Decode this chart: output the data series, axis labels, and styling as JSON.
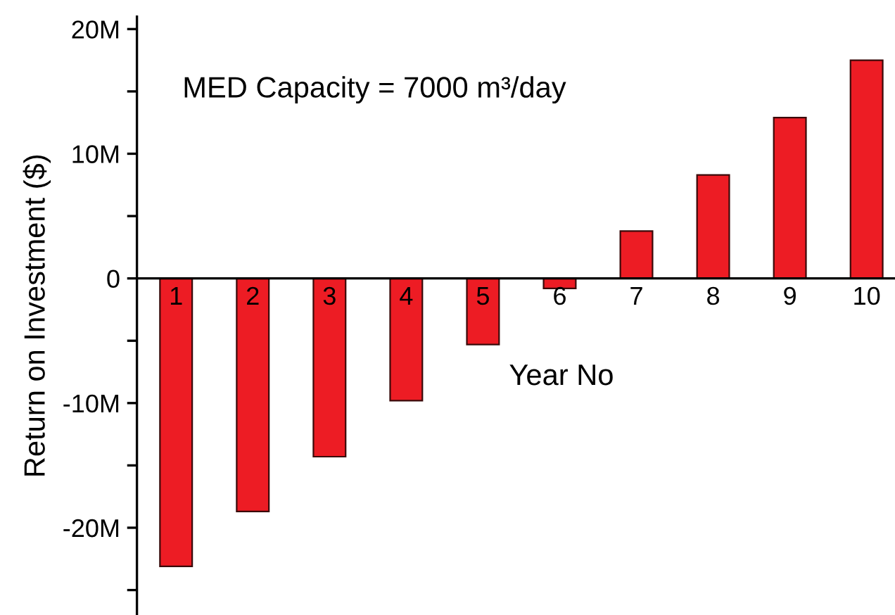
{
  "chart_data": {
    "type": "bar",
    "xlabel": "Year No",
    "ylabel": "Return on Investment ($)",
    "categories": [
      "1",
      "2",
      "3",
      "4",
      "5",
      "6",
      "7",
      "8",
      "9",
      "10"
    ],
    "values": [
      -23.1,
      -18.7,
      -14.3,
      -9.8,
      -5.3,
      -0.8,
      3.8,
      8.3,
      12.9,
      17.5
    ],
    "color": "#ed1c24",
    "ylim": [
      -27,
      21
    ],
    "yticks": [
      {
        "value": -25,
        "label": null
      },
      {
        "value": -20,
        "label": "-20M"
      },
      {
        "value": -15,
        "label": null
      },
      {
        "value": -10,
        "label": "-10M"
      },
      {
        "value": -5,
        "label": null
      },
      0,
      {
        "value": 5,
        "label": null
      },
      {
        "value": 10,
        "label": "10M"
      },
      {
        "value": 15,
        "label": null
      },
      {
        "value": 20,
        "label": "20M"
      }
    ],
    "annotations": [
      "MED Capacity = 7000 m³/day"
    ],
    "grid": false,
    "legend": false
  }
}
